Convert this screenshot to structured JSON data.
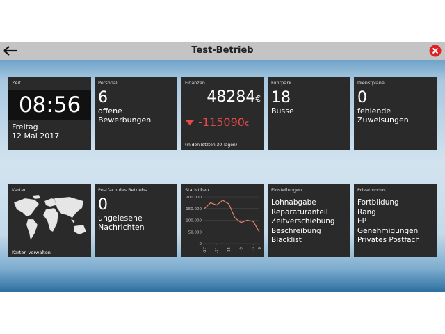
{
  "header": {
    "title": "Test-Betrieb"
  },
  "time": {
    "label": "Zeit",
    "clock": "08:56",
    "weekday": "Freitag",
    "date": "12 Mai 2017"
  },
  "personal": {
    "label": "Personal",
    "value": 6,
    "text": "offene Bewerbungen"
  },
  "finance": {
    "label": "Finanzen",
    "value": 48284,
    "currency": "€",
    "change": -115090,
    "change_currency": "€",
    "note": "(in den letzten 30 Tagen)"
  },
  "fleet": {
    "label": "Fuhrpark",
    "value": 18,
    "text": "Busse"
  },
  "schedules": {
    "label": "Dienstpläne",
    "value": 0,
    "text": "fehlende Zuweisungen"
  },
  "maps": {
    "label": "Karten",
    "link": "Karten verwalten"
  },
  "mailbox": {
    "label": "Postfach des Betriebs",
    "value": 0,
    "text": "ungelesene Nachrichten"
  },
  "statistics": {
    "label": "Statistiken",
    "chart": {
      "type": "line",
      "color": "#e8826a",
      "x": [
        -27,
        -24,
        -21,
        -18,
        -15,
        -12,
        -9,
        -6,
        -3,
        0
      ],
      "values": [
        150000,
        175000,
        165000,
        185000,
        170000,
        110000,
        90000,
        100000,
        95000,
        50000
      ],
      "xlim": [
        -27,
        0
      ],
      "xticks": [
        -27,
        -21,
        -15,
        -9,
        -3,
        0
      ],
      "ylim": [
        0,
        200000
      ],
      "yticks": [
        {
          "value": 200000,
          "label": "200.000"
        },
        {
          "value": 150000,
          "label": "150.000"
        },
        {
          "value": 100000,
          "label": "100.000"
        },
        {
          "value": 50000,
          "label": "50.000"
        },
        0
      ]
    }
  },
  "settings": {
    "label": "Einstellungen",
    "items": [
      "Lohnabgabe",
      "Reparaturanteil",
      "Zeitverschiebung",
      "Beschreibung",
      "Blacklist"
    ]
  },
  "private": {
    "label": "Privatmodus",
    "items": [
      "Fortbildung",
      "Rang",
      "EP",
      "Genehmigungen",
      "Privates Postfach"
    ]
  }
}
